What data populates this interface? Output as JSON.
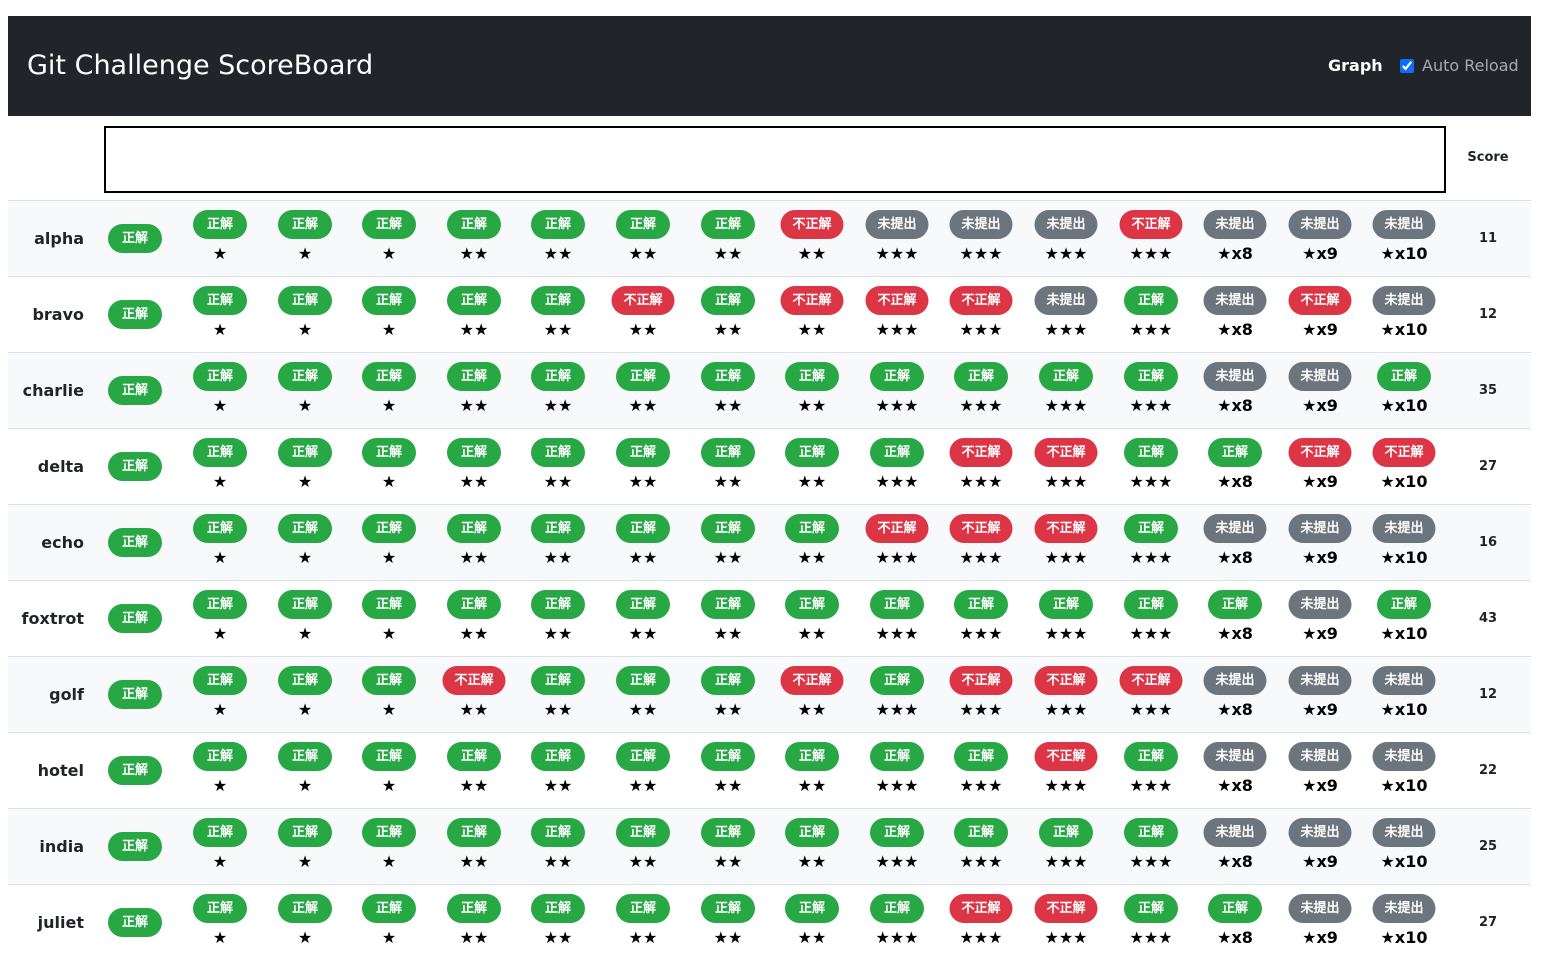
{
  "navbar": {
    "title": "Git Challenge ScoreBoard",
    "graph_label": "Graph",
    "auto_reload_label": "Auto Reload",
    "auto_reload_checked": true
  },
  "table": {
    "score_header": "Score",
    "difficulty": [
      "★",
      "★",
      "★",
      "★★",
      "★★",
      "★★",
      "★★",
      "★★",
      "★★★",
      "★★★",
      "★★★",
      "★★★",
      "★x8",
      "★x9",
      "★x10"
    ],
    "status_labels": {
      "ok": "正解",
      "ng": "不正解",
      "none": "未提出"
    },
    "colors": {
      "ok": "#28a745",
      "ng": "#dc3545",
      "none": "#6c757d"
    },
    "rows": [
      {
        "name": "alpha",
        "score": "11",
        "first": "ok",
        "results": [
          "ok",
          "ok",
          "ok",
          "ok",
          "ok",
          "ok",
          "ok",
          "ng",
          "none",
          "none",
          "none",
          "ng",
          "none",
          "none",
          "none"
        ]
      },
      {
        "name": "bravo",
        "score": "12",
        "first": "ok",
        "results": [
          "ok",
          "ok",
          "ok",
          "ok",
          "ok",
          "ng",
          "ok",
          "ng",
          "ng",
          "ng",
          "none",
          "ok",
          "none",
          "ng",
          "none"
        ]
      },
      {
        "name": "charlie",
        "score": "35",
        "first": "ok",
        "results": [
          "ok",
          "ok",
          "ok",
          "ok",
          "ok",
          "ok",
          "ok",
          "ok",
          "ok",
          "ok",
          "ok",
          "ok",
          "none",
          "none",
          "ok"
        ]
      },
      {
        "name": "delta",
        "score": "27",
        "first": "ok",
        "results": [
          "ok",
          "ok",
          "ok",
          "ok",
          "ok",
          "ok",
          "ok",
          "ok",
          "ok",
          "ng",
          "ng",
          "ok",
          "ok",
          "ng",
          "ng"
        ]
      },
      {
        "name": "echo",
        "score": "16",
        "first": "ok",
        "results": [
          "ok",
          "ok",
          "ok",
          "ok",
          "ok",
          "ok",
          "ok",
          "ok",
          "ng",
          "ng",
          "ng",
          "ok",
          "none",
          "none",
          "none"
        ]
      },
      {
        "name": "foxtrot",
        "score": "43",
        "first": "ok",
        "results": [
          "ok",
          "ok",
          "ok",
          "ok",
          "ok",
          "ok",
          "ok",
          "ok",
          "ok",
          "ok",
          "ok",
          "ok",
          "ok",
          "none",
          "ok"
        ]
      },
      {
        "name": "golf",
        "score": "12",
        "first": "ok",
        "results": [
          "ok",
          "ok",
          "ok",
          "ng",
          "ok",
          "ok",
          "ok",
          "ng",
          "ok",
          "ng",
          "ng",
          "ng",
          "none",
          "none",
          "none"
        ]
      },
      {
        "name": "hotel",
        "score": "22",
        "first": "ok",
        "results": [
          "ok",
          "ok",
          "ok",
          "ok",
          "ok",
          "ok",
          "ok",
          "ok",
          "ok",
          "ok",
          "ng",
          "ok",
          "none",
          "none",
          "none"
        ]
      },
      {
        "name": "india",
        "score": "25",
        "first": "ok",
        "results": [
          "ok",
          "ok",
          "ok",
          "ok",
          "ok",
          "ok",
          "ok",
          "ok",
          "ok",
          "ok",
          "ok",
          "ok",
          "none",
          "none",
          "none"
        ]
      },
      {
        "name": "juliet",
        "score": "27",
        "first": "ok",
        "results": [
          "ok",
          "ok",
          "ok",
          "ok",
          "ok",
          "ok",
          "ok",
          "ok",
          "ok",
          "ng",
          "ng",
          "ok",
          "ok",
          "none",
          "none"
        ]
      }
    ]
  }
}
